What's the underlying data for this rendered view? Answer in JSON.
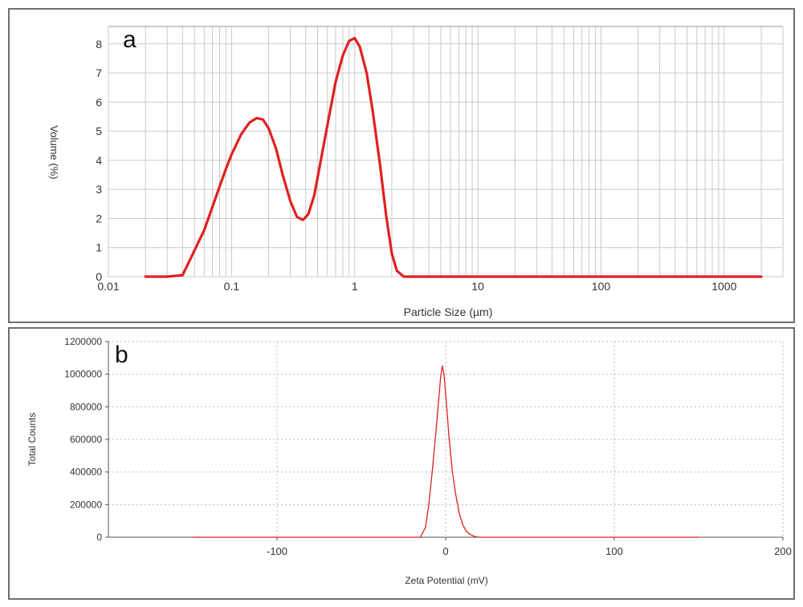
{
  "chart_data": [
    {
      "panel_label": "a",
      "type": "line",
      "xlabel": "Particle Size (µm)",
      "ylabel": "Volume (%)",
      "x_scale": "log",
      "xlim": [
        0.01,
        3000
      ],
      "ylim": [
        0,
        8.6
      ],
      "x_ticks": [
        0.01,
        0.1,
        1,
        10,
        100,
        1000
      ],
      "x_tick_labels": [
        "0.01",
        "0.1",
        "1",
        "10",
        "100",
        "1000"
      ],
      "y_ticks": [
        0,
        1,
        2,
        3,
        4,
        5,
        6,
        7,
        8
      ],
      "y_tick_labels": [
        "0",
        "1",
        "2",
        "3",
        "4",
        "5",
        "6",
        "7",
        "8"
      ],
      "grid": true,
      "color": "#e02020",
      "series": [
        {
          "x": [
            0.02,
            0.03,
            0.04,
            0.045,
            0.05,
            0.06,
            0.07,
            0.08,
            0.09,
            0.1,
            0.12,
            0.14,
            0.16,
            0.18,
            0.2,
            0.23,
            0.26,
            0.3,
            0.34,
            0.38,
            0.42,
            0.47,
            0.52,
            0.6,
            0.7,
            0.8,
            0.9,
            1.0,
            1.1,
            1.25,
            1.4,
            1.6,
            1.8,
            2.0,
            2.2,
            2.5,
            3,
            5,
            10,
            50,
            100,
            500,
            1000,
            2000
          ],
          "y": [
            0,
            0,
            0.05,
            0.5,
            0.9,
            1.6,
            2.4,
            3.1,
            3.7,
            4.2,
            4.9,
            5.3,
            5.45,
            5.4,
            5.1,
            4.4,
            3.5,
            2.6,
            2.05,
            1.95,
            2.15,
            2.8,
            3.8,
            5.2,
            6.7,
            7.6,
            8.1,
            8.2,
            7.9,
            7.0,
            5.7,
            3.9,
            2.1,
            0.8,
            0.2,
            0,
            0,
            0,
            0,
            0,
            0,
            0,
            0,
            0
          ]
        }
      ]
    },
    {
      "panel_label": "b",
      "type": "line",
      "xlabel": "Zeta Potential (mV)",
      "ylabel": "Total Counts",
      "xlim": [
        -200,
        200
      ],
      "ylim": [
        0,
        1200000
      ],
      "x_ticks": [
        -100,
        0,
        100,
        200
      ],
      "x_tick_labels": [
        "-100",
        "0",
        "100",
        "200"
      ],
      "y_ticks": [
        0,
        200000,
        400000,
        600000,
        800000,
        1000000,
        1200000
      ],
      "y_tick_labels": [
        "0",
        "200000",
        "400000",
        "600000",
        "800000",
        "1000000",
        "1200000"
      ],
      "grid": "dotted",
      "color": "#e02020",
      "series": [
        {
          "x": [
            -150,
            -15,
            -12,
            -10,
            -8,
            -6,
            -4,
            -3,
            -2,
            -1,
            0,
            1,
            2,
            4,
            6,
            8,
            10,
            12,
            14,
            17,
            20,
            150
          ],
          "y": [
            0,
            0,
            60000,
            200000,
            400000,
            620000,
            860000,
            980000,
            1050000,
            1000000,
            880000,
            750000,
            610000,
            400000,
            260000,
            150000,
            80000,
            40000,
            20000,
            5000,
            0,
            0
          ]
        }
      ]
    }
  ]
}
